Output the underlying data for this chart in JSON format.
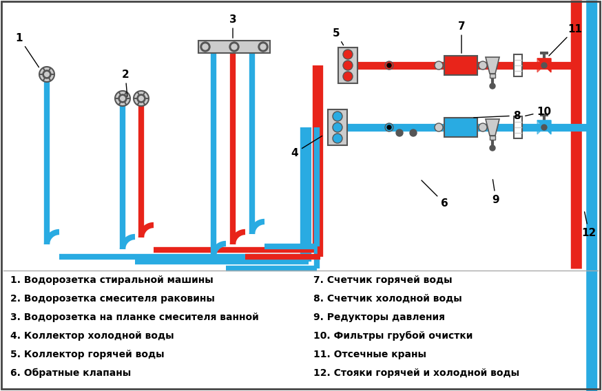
{
  "bg_color": "#ffffff",
  "red": "#e8241a",
  "blue": "#29abe2",
  "gray": "#888888",
  "dgray": "#555555",
  "lgray": "#cccccc",
  "black": "#000000",
  "white": "#ffffff",
  "legend_left": [
    "1. Водорозетка стиральной машины",
    "2. Водорозетка смесителя раковины",
    "3. Водорозетка на планке смесителя ванной",
    "4. Коллектор холодной воды",
    "5. Коллектор горячей воды",
    "6. Обратные клапаны"
  ],
  "legend_right": [
    "7. Счетчик горячей воды",
    "8. Счетчик холодной воды",
    "9. Редукторы давления",
    "10. Фильтры грубой очистки",
    "11. Отсечные краны",
    "12. Стояки горячей и холодной воды"
  ]
}
